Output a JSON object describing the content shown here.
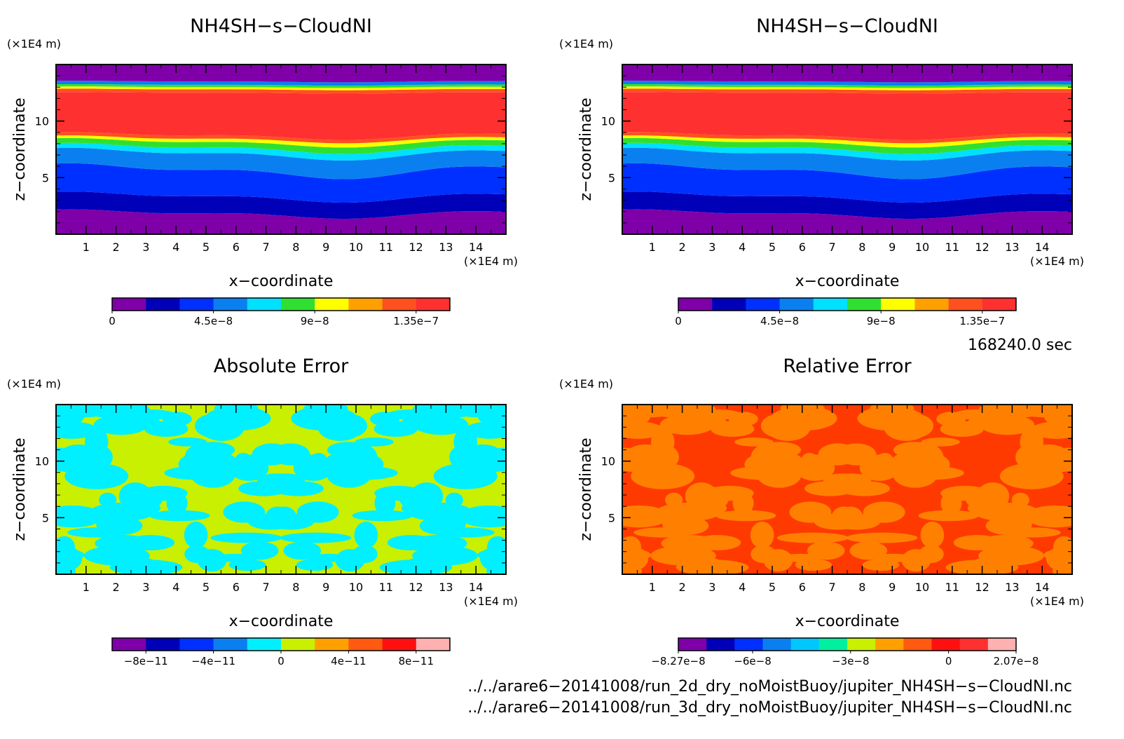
{
  "panels": [
    {
      "id": "top-left",
      "title": "NH4SH−s−CloudNI",
      "xlabel": "x−coordinate",
      "ylabel": "z−coordinate",
      "xunit": "(×1E4 m)",
      "yunit": "(×1E4 m)",
      "xticks": [
        "1",
        "2",
        "3",
        "4",
        "5",
        "6",
        "7",
        "8",
        "9",
        "10",
        "11",
        "12",
        "13",
        "14"
      ],
      "yticks": [
        "5",
        "10"
      ],
      "colorbar": {
        "colors": [
          "#7f00a8",
          "#0000b8",
          "#0030ff",
          "#0a80f0",
          "#00e0ff",
          "#30e030",
          "#ffff00",
          "#ffa000",
          "#ff5020",
          "#ff3030"
        ],
        "labels": [
          "0",
          "4.5e−8",
          "9e−8",
          "1.35e−7"
        ]
      },
      "pattern": "cloud"
    },
    {
      "id": "top-right",
      "title": "NH4SH−s−CloudNI",
      "xlabel": "x−coordinate",
      "ylabel": "z−coordinate",
      "xunit": "(×1E4 m)",
      "yunit": "(×1E4 m)",
      "xticks": [
        "1",
        "2",
        "3",
        "4",
        "5",
        "6",
        "7",
        "8",
        "9",
        "10",
        "11",
        "12",
        "13",
        "14"
      ],
      "yticks": [
        "5",
        "10"
      ],
      "colorbar": {
        "colors": [
          "#7f00a8",
          "#0000b8",
          "#0030ff",
          "#0a80f0",
          "#00e0ff",
          "#30e030",
          "#ffff00",
          "#ffa000",
          "#ff5020",
          "#ff3030"
        ],
        "labels": [
          "0",
          "4.5e−8",
          "9e−8",
          "1.35e−7"
        ]
      },
      "pattern": "cloud"
    },
    {
      "id": "bottom-left",
      "title": "Absolute Error",
      "xlabel": "x−coordinate",
      "ylabel": "z−coordinate",
      "xunit": "(×1E4 m)",
      "yunit": "(×1E4 m)",
      "xticks": [
        "1",
        "2",
        "3",
        "4",
        "5",
        "6",
        "7",
        "8",
        "9",
        "10",
        "11",
        "12",
        "13",
        "14"
      ],
      "yticks": [
        "5",
        "10"
      ],
      "colorbar": {
        "colors": [
          "#7f00a8",
          "#0000b8",
          "#0030ff",
          "#0a80f0",
          "#00f0ff",
          "#c8f000",
          "#ffa000",
          "#ff5a10",
          "#ff1010",
          "#ffb0b0"
        ],
        "labels": [
          "−8e−11",
          "−4e−11",
          "0",
          "4e−11",
          "8e−11"
        ]
      },
      "pattern": "abs",
      "field_colors": [
        "#c8f000",
        "#00f0ff"
      ]
    },
    {
      "id": "bottom-right",
      "title": "Relative Error",
      "xlabel": "x−coordinate",
      "ylabel": "z−coordinate",
      "xunit": "(×1E4 m)",
      "yunit": "(×1E4 m)",
      "xticks": [
        "1",
        "2",
        "3",
        "4",
        "5",
        "6",
        "7",
        "8",
        "9",
        "10",
        "11",
        "12",
        "13",
        "14"
      ],
      "yticks": [
        "5",
        "10"
      ],
      "colorbar": {
        "colors": [
          "#7f00a8",
          "#0000b8",
          "#0030ff",
          "#0a80f0",
          "#00c8ff",
          "#00f0a0",
          "#c8f000",
          "#ffa000",
          "#ff5a10",
          "#ff1010",
          "#ff3030",
          "#ffb0b0"
        ],
        "labels": [
          "−8.27e−8",
          "−6e−8",
          "−3e−8",
          "0",
          "2.07e−8"
        ]
      },
      "pattern": "rel",
      "field_colors": [
        "#ff3a00",
        "#ff8000"
      ]
    }
  ],
  "time_label": "168240.0 sec",
  "files": [
    "../../arare6−20141008/run_2d_dry_noMoistBuoy/jupiter_NH4SH−s−CloudNI.nc",
    "../../arare6−20141008/run_3d_dry_noMoistBuoy/jupiter_NH4SH−s−CloudNI.nc"
  ],
  "chart_data": [
    {
      "type": "heatmap",
      "title": "NH4SH−s−CloudNI",
      "xlabel": "x−coordinate",
      "ylabel": "z−coordinate",
      "x_unit": "(×1E4 m)",
      "y_unit": "(×1E4 m)",
      "xlim": [
        0,
        15
      ],
      "ylim": [
        0,
        15
      ],
      "colorbar_range": [
        0,
        1.5e-07
      ],
      "colorbar_ticks": [
        0,
        4.5e-08,
        9e-08,
        1.35e-07
      ],
      "z_layers": [
        {
          "z_range": [
            0,
            1.8
          ],
          "level": 0
        },
        {
          "z_range": [
            1.8,
            3.3
          ],
          "level": 1.5e-08
        },
        {
          "z_range": [
            3.3,
            5.5
          ],
          "level": 3e-08
        },
        {
          "z_range": [
            5.5,
            7.2
          ],
          "level": 4.5e-08
        },
        {
          "z_range": [
            7.2,
            8.7
          ],
          "level": 8e-08
        },
        {
          "z_range": [
            8.7,
            12.7
          ],
          "level": 1.4e-07
        },
        {
          "z_range": [
            12.7,
            13.5
          ],
          "level": 7e-08
        },
        {
          "z_range": [
            13.5,
            15
          ],
          "level": 0
        }
      ]
    },
    {
      "type": "heatmap",
      "title": "NH4SH−s−CloudNI",
      "xlabel": "x−coordinate",
      "ylabel": "z−coordinate",
      "x_unit": "(×1E4 m)",
      "y_unit": "(×1E4 m)",
      "xlim": [
        0,
        15
      ],
      "ylim": [
        0,
        15
      ],
      "colorbar_range": [
        0,
        1.5e-07
      ],
      "colorbar_ticks": [
        0,
        4.5e-08,
        9e-08,
        1.35e-07
      ]
    },
    {
      "type": "heatmap",
      "title": "Absolute Error",
      "xlabel": "x−coordinate",
      "ylabel": "z−coordinate",
      "x_unit": "(×1E4 m)",
      "y_unit": "(×1E4 m)",
      "xlim": [
        0,
        15
      ],
      "ylim": [
        0,
        15
      ],
      "colorbar_range": [
        -1e-10,
        1e-10
      ],
      "colorbar_ticks": [
        -8e-11,
        -4e-11,
        0,
        4e-11,
        8e-11
      ]
    },
    {
      "type": "heatmap",
      "title": "Relative Error",
      "xlabel": "x−coordinate",
      "ylabel": "z−coordinate",
      "x_unit": "(×1E4 m)",
      "y_unit": "(×1E4 m)",
      "xlim": [
        0,
        15
      ],
      "ylim": [
        0,
        15
      ],
      "colorbar_range": [
        -8.27e-08,
        2.07e-08
      ],
      "colorbar_ticks": [
        -8.27e-08,
        -6e-08,
        -3e-08,
        0,
        2.07e-08
      ]
    }
  ]
}
